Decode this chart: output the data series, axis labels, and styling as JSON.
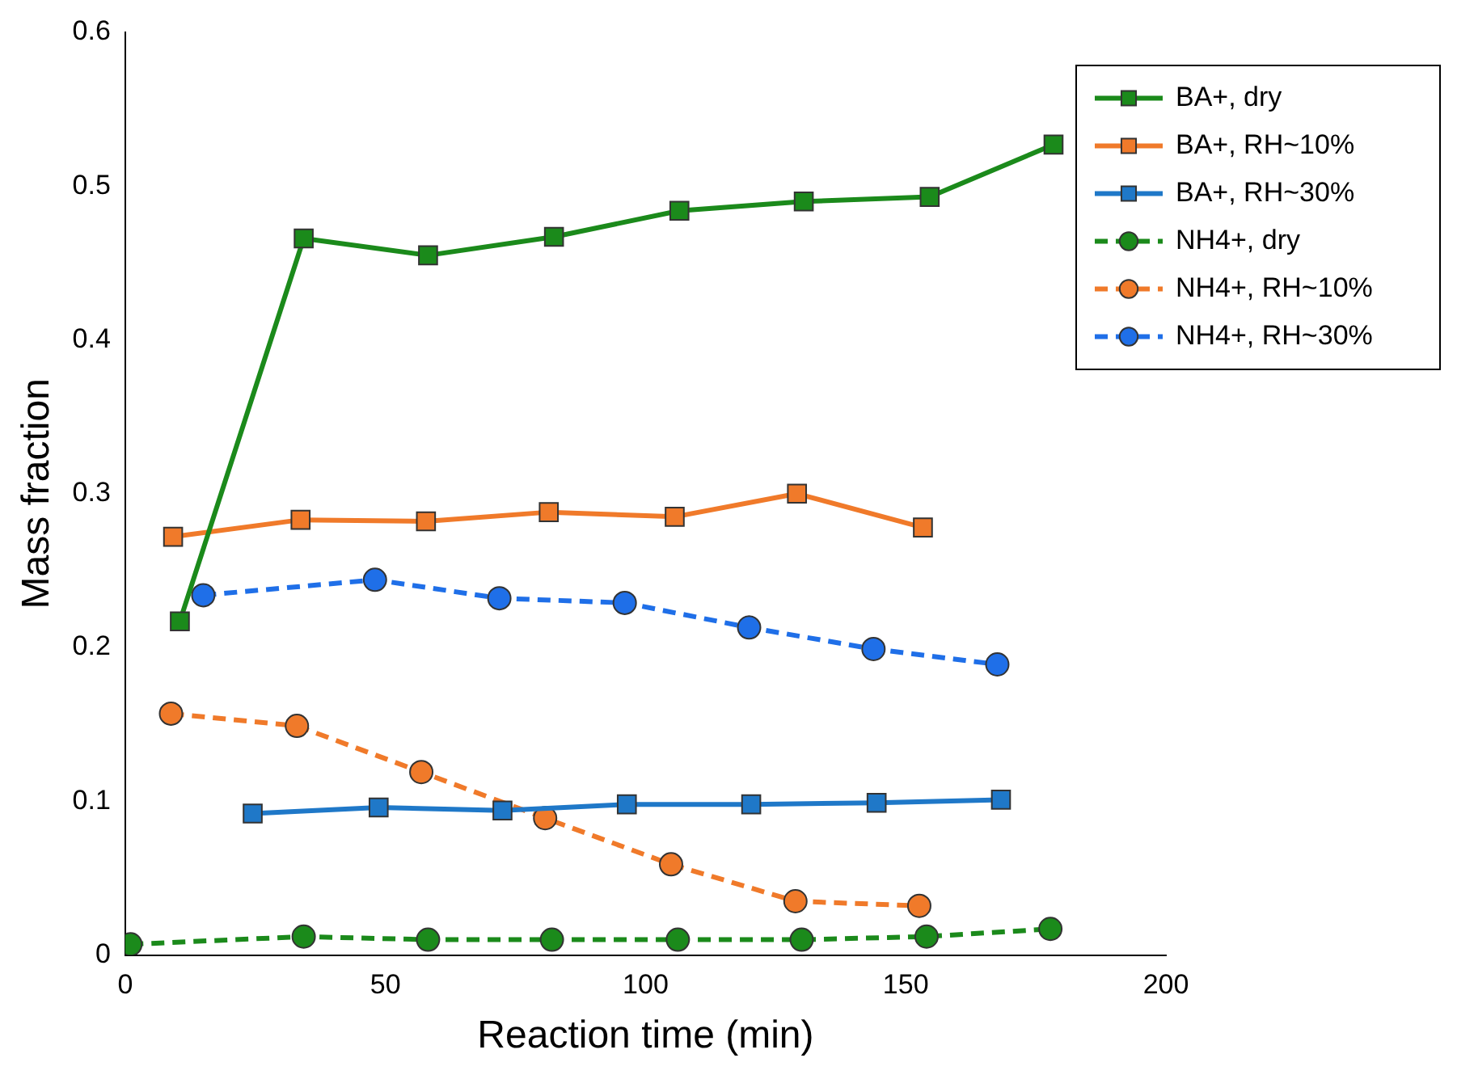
{
  "chart_data": {
    "type": "line",
    "xlabel": "Reaction time (min)",
    "ylabel": "Mass fraction",
    "xlim": [
      0,
      200
    ],
    "xticks": [
      0,
      50,
      100,
      150,
      200
    ],
    "ylim": [
      0,
      0.6
    ],
    "yticks": [
      0,
      0.1,
      0.2,
      0.3,
      0.4,
      0.5,
      0.6
    ],
    "grid": false,
    "legend": "top right",
    "series": [
      {
        "name": "BA+, dry",
        "color": "#1b8a1b",
        "marker": "square",
        "line_style": "solid",
        "x": [
          10.5,
          34.3,
          58.2,
          82.4,
          106.5,
          130.4,
          154.6,
          178.4
        ],
        "values": [
          0.217,
          0.466,
          0.455,
          0.467,
          0.484,
          0.49,
          0.493,
          0.527
        ]
      },
      {
        "name": "BA+, RH~10%",
        "color": "#f07a2a",
        "marker": "square",
        "line_style": "solid",
        "x": [
          9.2,
          33.7,
          57.8,
          81.4,
          105.6,
          129.1,
          153.3
        ],
        "values": [
          0.272,
          0.283,
          0.282,
          0.288,
          0.285,
          0.3,
          0.278
        ]
      },
      {
        "name": "BA+, RH~30%",
        "color": "#1f78c8",
        "marker": "square",
        "line_style": "solid",
        "x": [
          24.5,
          48.7,
          72.5,
          96.4,
          120.3,
          144.4,
          168.3
        ],
        "values": [
          0.092,
          0.096,
          0.094,
          0.098,
          0.098,
          0.099,
          0.101
        ]
      },
      {
        "name": "NH4+, dry",
        "color": "#1b8a1b",
        "marker": "circle",
        "line_style": "dashed",
        "x": [
          1,
          34.3,
          58.2,
          82,
          106.2,
          130,
          154,
          177.8
        ],
        "values": [
          0.007,
          0.012,
          0.01,
          0.01,
          0.01,
          0.01,
          0.012,
          0.017
        ]
      },
      {
        "name": "NH4+, RH~10%",
        "color": "#f07a2a",
        "marker": "circle",
        "line_style": "dashed",
        "x": [
          8.8,
          33,
          56.9,
          80.7,
          104.9,
          128.8,
          152.6
        ],
        "values": [
          0.157,
          0.149,
          0.119,
          0.089,
          0.059,
          0.035,
          0.032
        ]
      },
      {
        "name": "NH4+, RH~30%",
        "color": "#1f6fe8",
        "marker": "circle",
        "line_style": "dashed",
        "x": [
          15,
          48,
          71.9,
          96,
          119.9,
          143.8,
          167.6
        ],
        "values": [
          0.234,
          0.244,
          0.232,
          0.229,
          0.213,
          0.199,
          0.189
        ]
      }
    ]
  }
}
